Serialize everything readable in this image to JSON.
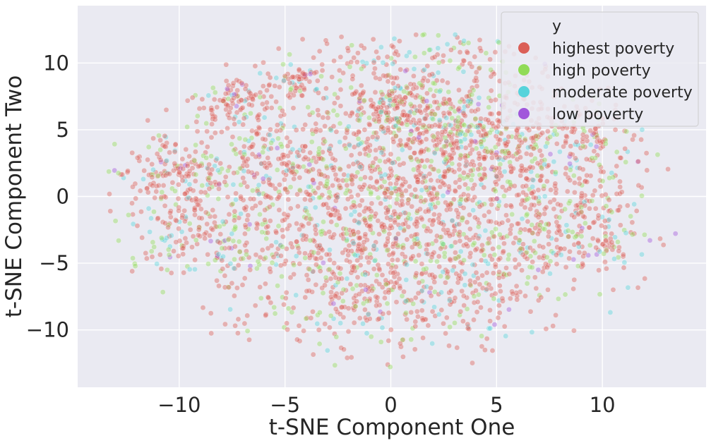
{
  "chart_data": {
    "type": "scatter",
    "title": "",
    "xlabel": "t-SNE Component One",
    "ylabel": "t-SNE Component Two",
    "xlim": [
      -14.8,
      14.9
    ],
    "ylim": [
      -14.3,
      14.3
    ],
    "xticks": [
      -10,
      -5,
      0,
      5,
      10
    ],
    "yticks": [
      -10,
      -5,
      0,
      5,
      10
    ],
    "tick_labels_x": [
      "−10",
      "−5",
      "0",
      "5",
      "10"
    ],
    "tick_labels_y": [
      "−10",
      "−5",
      "0",
      "5",
      "10"
    ],
    "grid": true,
    "background": "#eaeaf2",
    "grid_color": "#ffffff",
    "legend": {
      "title": "y",
      "placement": "top-right",
      "entries": [
        {
          "label": "highest poverty",
          "color": "#db5f57"
        },
        {
          "label": "high poverty",
          "color": "#91db57"
        },
        {
          "label": "moderate poverty",
          "color": "#57d3db"
        },
        {
          "label": "low poverty",
          "color": "#a157db"
        }
      ]
    },
    "series": [
      {
        "name": "highest poverty",
        "color": "#db5f57",
        "approx_count": 2400
      },
      {
        "name": "high poverty",
        "color": "#91db57",
        "approx_count": 650
      },
      {
        "name": "moderate poverty",
        "color": "#57d3db",
        "approx_count": 320
      },
      {
        "name": "low poverty",
        "color": "#a157db",
        "approx_count": 60
      }
    ],
    "distribution": {
      "clusters": [
        {
          "x": 1.0,
          "y": 1.5,
          "sx": 3.2,
          "sy": 3.0,
          "w": 3.0
        },
        {
          "x": 3.2,
          "y": 5.5,
          "sx": 2.2,
          "sy": 1.8,
          "w": 1.6
        },
        {
          "x": -2.2,
          "y": -4.0,
          "sx": 3.0,
          "sy": 2.6,
          "w": 2.2
        },
        {
          "x": -8.8,
          "y": -1.5,
          "sx": 1.9,
          "sy": 2.3,
          "w": 1.4
        },
        {
          "x": -7.2,
          "y": 7.0,
          "sx": 1.0,
          "sy": 0.9,
          "w": 0.5
        },
        {
          "x": -4.3,
          "y": 8.6,
          "sx": 0.6,
          "sy": 0.7,
          "w": 0.3
        },
        {
          "x": 6.5,
          "y": 2.0,
          "sx": 2.2,
          "sy": 2.8,
          "w": 1.2
        },
        {
          "x": 9.2,
          "y": -2.6,
          "sx": 1.6,
          "sy": 1.8,
          "w": 0.9
        },
        {
          "x": 4.0,
          "y": -4.5,
          "sx": 2.6,
          "sy": 2.4,
          "w": 1.4
        },
        {
          "x": -4.8,
          "y": 2.8,
          "sx": 2.2,
          "sy": 2.0,
          "w": 1.2
        },
        {
          "x": 0.0,
          "y": -8.2,
          "sx": 3.5,
          "sy": 1.9,
          "w": 1.0
        },
        {
          "x": -10.5,
          "y": 1.5,
          "sx": 1.2,
          "sy": 1.5,
          "w": 0.5
        },
        {
          "x": 0.3,
          "y": 7.0,
          "sx": 1.3,
          "sy": 1.0,
          "w": 0.8
        },
        {
          "x": 9.0,
          "y": 4.5,
          "sx": 1.4,
          "sy": 1.4,
          "w": 0.5
        },
        {
          "x": 1.8,
          "y": 10.2,
          "sx": 2.8,
          "sy": 1.0,
          "w": 0.6
        }
      ],
      "envelope": {
        "cx": 0.0,
        "cy": -0.2,
        "rx": 13.8,
        "ry": 12.9
      }
    }
  }
}
